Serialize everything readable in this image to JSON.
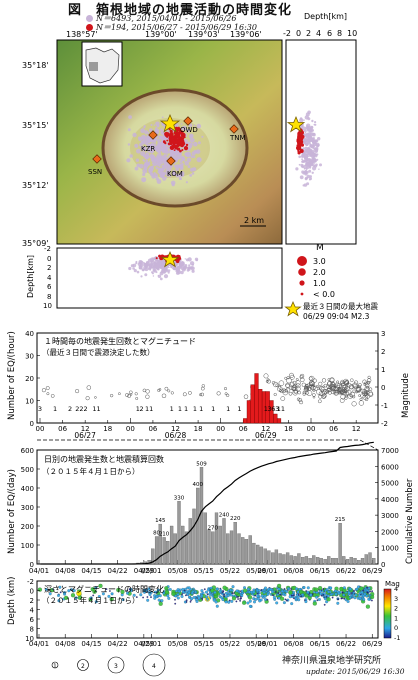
{
  "title": "図　箱根地域の地震活動の時間変化",
  "legend": [
    {
      "label": "N＝6493, 2015/04/01 - 2015/06/26",
      "color": "#c8b4d8"
    },
    {
      "label": "N＝194, 2015/06/27 - 2015/06/29 16:30",
      "color": "#d0151b"
    }
  ],
  "map": {
    "lon_ticks": [
      "138°57'",
      "139°00'",
      "139°03'",
      "139°06'"
    ],
    "lat_ticks": [
      "35°18'",
      "35°15'",
      "35°12'",
      "35°09'"
    ],
    "stations": [
      "SSN",
      "KZR",
      "KOM",
      "TNM",
      "OWD"
    ],
    "scale_label": "2 km",
    "depth_axis_label": "Depth[km]",
    "depth_ticks": [
      "-2",
      "0",
      "2",
      "4",
      "6",
      "8",
      "10"
    ],
    "side_depth_label": "Depth[km]",
    "side_depth_ticks": [
      "-2",
      "0",
      "2",
      "4",
      "6",
      "8",
      "10"
    ]
  },
  "mag_legend": {
    "title": "M",
    "items": [
      "3.0",
      "2.0",
      "1.0",
      "< 0.0"
    ],
    "star_label": "最近３日間の最大地震",
    "star_detail": "06/29 09:04 M2.3"
  },
  "colors": {
    "hist": "#e31a1c",
    "recent": "#d0151b",
    "old": "#c8b4d8",
    "star": "#ffe100",
    "star_edge": "#7a6000"
  },
  "chart_data": [
    {
      "type": "bar",
      "title": "１時間毎の地震発生回数とマグニチュード",
      "subtitle": "（最近３日間で震源決定した数）",
      "ylabel": "Number of EQ/(hour)",
      "y2label": "Magnitude",
      "ylim": [
        0,
        40
      ],
      "y_ticks": [
        "0",
        "10",
        "20",
        "30",
        "40"
      ],
      "y2lim": [
        -2,
        3
      ],
      "y2_ticks": [
        "-2",
        "-1",
        "0",
        "1",
        "2",
        "3"
      ],
      "x_ticks": [
        "06/27",
        "06/28",
        "06/29"
      ],
      "x": [
        "06/29 06",
        "06/29 07",
        "06/29 08",
        "06/29 09",
        "06/29 10",
        "06/29 11",
        "06/29 12",
        "06/29 13",
        "06/29 14",
        "06/29 15"
      ],
      "values": [
        2,
        10,
        17,
        22,
        15,
        14,
        14,
        10,
        4,
        2
      ],
      "annotations": [
        {
          "x": "06/27 00",
          "label": "3"
        },
        {
          "x": "06/27 04",
          "label": "1"
        },
        {
          "x": "06/27 08",
          "label": "2"
        },
        {
          "x": "06/27 11",
          "label": "222"
        },
        {
          "x": "06/27 15",
          "label": "11"
        },
        {
          "x": "06/28 02",
          "label": "1"
        },
        {
          "x": "06/28 03",
          "label": "2"
        },
        {
          "x": "06/28 05",
          "label": "11"
        },
        {
          "x": "06/28 11",
          "label": "1"
        },
        {
          "x": "06/28 14",
          "label": "1 1"
        },
        {
          "x": "06/28 18",
          "label": "1 1"
        },
        {
          "x": "06/28 22",
          "label": "1"
        },
        {
          "x": "06/29 02",
          "label": "1"
        },
        {
          "x": "06/29 05",
          "label": "1"
        },
        {
          "x": "06/29 12",
          "label": "1"
        },
        {
          "x": "06/29 13",
          "label": "3"
        },
        {
          "x": "06/29 14",
          "label": "6"
        },
        {
          "x": "06/29 15",
          "label": "3"
        },
        {
          "x": "06/29 16",
          "label": "11"
        }
      ]
    },
    {
      "type": "bar",
      "title": "日別の地震発生数と地震積算回数",
      "subtitle": "（２０１５年４月１日から）",
      "ylabel": "Number of EQ/(day)",
      "y2label": "Cumulative Number",
      "ylim": [
        0,
        600
      ],
      "y_ticks": [
        "0",
        "100",
        "200",
        "300",
        "400",
        "500",
        "600"
      ],
      "y2lim": [
        0,
        7000
      ],
      "y2_ticks": [
        "0",
        "1000",
        "2000",
        "3000",
        "4000",
        "5000",
        "6000",
        "7000"
      ],
      "x_ticks": [
        "04/01",
        "04/08",
        "04/15",
        "04/22",
        "04/29",
        "05/01",
        "05/08",
        "05/15",
        "05/22",
        "05/29",
        "06/01",
        "06/08",
        "06/15",
        "06/22",
        "06/29"
      ],
      "x_start": "04/01",
      "x_end": "06/29",
      "values": [
        0,
        0,
        0,
        0,
        0,
        0,
        0,
        0,
        0,
        0,
        0,
        0,
        0,
        0,
        0,
        0,
        0,
        0,
        0,
        0,
        0,
        0,
        0,
        0,
        0,
        2,
        5,
        8,
        12,
        20,
        80,
        145,
        210,
        140,
        120,
        200,
        160,
        330,
        200,
        170,
        240,
        290,
        400,
        509,
        270,
        180,
        170,
        270,
        200,
        240,
        160,
        175,
        220,
        160,
        140,
        130,
        150,
        110,
        100,
        90,
        80,
        70,
        60,
        75,
        55,
        50,
        60,
        45,
        40,
        55,
        35,
        40,
        30,
        45,
        35,
        30,
        25,
        40,
        30,
        30,
        215,
        40,
        25,
        35,
        30,
        20,
        30,
        50,
        60,
        30
      ],
      "bar_labels": [
        {
          "day": 31,
          "label": "80"
        },
        {
          "day": 32,
          "label": "145"
        },
        {
          "day": 33,
          "label": "210"
        },
        {
          "day": 37,
          "label": "330"
        },
        {
          "day": 42,
          "label": "400"
        },
        {
          "day": 43,
          "label": "509"
        },
        {
          "day": 46,
          "label": "270"
        },
        {
          "day": 49,
          "label": "240"
        },
        {
          "day": 52,
          "label": "220"
        },
        {
          "day": 80,
          "label": "215"
        }
      ],
      "cumulative_final": 6687
    },
    {
      "type": "scatter",
      "title": "深さとマグニチュードの時間変化",
      "subtitle": "（２０１５年４月１日から）",
      "ylabel": "Depth (km)",
      "ylim": [
        10,
        -2
      ],
      "y_ticks": [
        "-2",
        "0",
        "2",
        "4",
        "6",
        "8",
        "10"
      ],
      "x_ticks": [
        "04/01",
        "04/08",
        "04/15",
        "04/22",
        "04/29",
        "05/01",
        "05/08",
        "05/15",
        "05/22",
        "05/29",
        "06/01",
        "06/08",
        "06/15",
        "06/22",
        "06/29"
      ],
      "colorbar": {
        "label": "Mag",
        "ticks": [
          "-1",
          "0",
          "1",
          "2",
          "3",
          "4"
        ]
      },
      "size_legend": [
        "1",
        "2",
        "3",
        "4"
      ]
    }
  ],
  "footer": {
    "institute": "神奈川県温泉地学研究所",
    "update": "update: 2015/06/29 16:30"
  }
}
